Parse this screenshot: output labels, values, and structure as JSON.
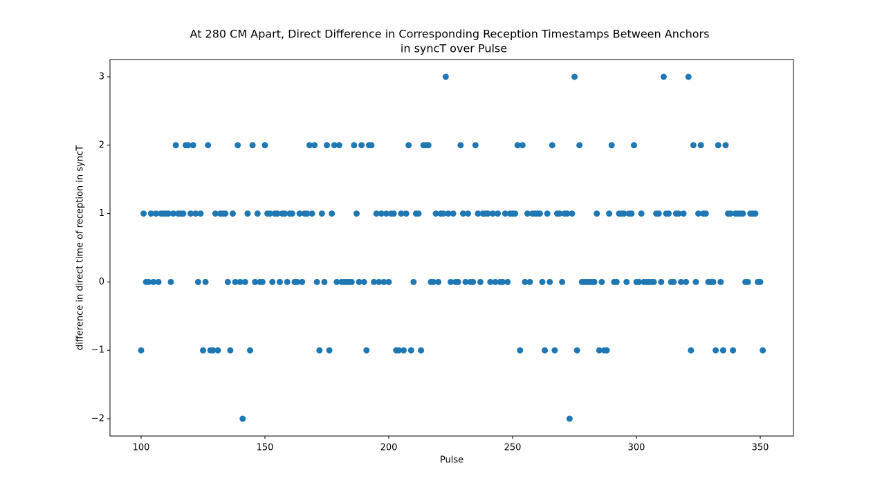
{
  "chart_data": {
    "type": "scatter",
    "title": [
      "At 280 CM Apart, Direct Difference in Corresponding Reception Timestamps Between Anchors",
      "in syncT over Pulse"
    ],
    "x_label": "Pulse",
    "y_label": "difference in direct time of reception in syncT",
    "color": "#1f77b4",
    "x": [
      100,
      101,
      102,
      103,
      104,
      105,
      106,
      107,
      108,
      109,
      110,
      111,
      112,
      113,
      114,
      115,
      116,
      117,
      118,
      119,
      120,
      121,
      122,
      123,
      124,
      125,
      126,
      127,
      128,
      129,
      130,
      131,
      132,
      133,
      134,
      135,
      136,
      137,
      138,
      139,
      140,
      141,
      142,
      143,
      144,
      145,
      146,
      147,
      148,
      149,
      150,
      151,
      152,
      153,
      154,
      155,
      156,
      157,
      158,
      159,
      160,
      161,
      162,
      163,
      164,
      165,
      166,
      167,
      168,
      169,
      170,
      171,
      172,
      173,
      174,
      175,
      176,
      177,
      178,
      179,
      180,
      181,
      182,
      183,
      184,
      185,
      186,
      187,
      188,
      189,
      190,
      191,
      192,
      193,
      194,
      195,
      196,
      197,
      198,
      199,
      200,
      201,
      202,
      203,
      204,
      205,
      206,
      207,
      208,
      209,
      210,
      211,
      212,
      213,
      214,
      215,
      216,
      217,
      218,
      219,
      220,
      221,
      222,
      223,
      224,
      225,
      226,
      227,
      228,
      229,
      230,
      231,
      232,
      233,
      234,
      235,
      236,
      237,
      238,
      239,
      240,
      241,
      242,
      243,
      244,
      245,
      246,
      247,
      248,
      249,
      250,
      251,
      252,
      253,
      254,
      255,
      256,
      257,
      258,
      259,
      260,
      261,
      262,
      263,
      264,
      265,
      266,
      267,
      268,
      269,
      270,
      271,
      272,
      273,
      274,
      275,
      276,
      277,
      278,
      279,
      280,
      281,
      282,
      283,
      284,
      285,
      286,
      287,
      288,
      289,
      290,
      291,
      292,
      293,
      294,
      295,
      296,
      297,
      298,
      299,
      300,
      301,
      302,
      303,
      304,
      305,
      306,
      307,
      308,
      309,
      310,
      311,
      312,
      313,
      314,
      315,
      316,
      317,
      318,
      319,
      320,
      321,
      322,
      323,
      324,
      325,
      326,
      327,
      328,
      329,
      330,
      331,
      332,
      333,
      334,
      335,
      336,
      337,
      338,
      339,
      340,
      341,
      342,
      343,
      344,
      345,
      346,
      347,
      348,
      349,
      350,
      351
    ],
    "values": [
      -1,
      1,
      0,
      0,
      1,
      0,
      1,
      0,
      1,
      1,
      1,
      1,
      0,
      1,
      2,
      1,
      1,
      1,
      2,
      2,
      1,
      2,
      1,
      0,
      1,
      -1,
      0,
      2,
      -1,
      -1,
      1,
      -1,
      1,
      1,
      1,
      0,
      -1,
      1,
      0,
      2,
      0,
      -2,
      0,
      1,
      -1,
      2,
      0,
      1,
      0,
      0,
      2,
      1,
      1,
      0,
      1,
      1,
      0,
      1,
      1,
      0,
      1,
      1,
      0,
      0,
      1,
      0,
      1,
      1,
      2,
      1,
      2,
      0,
      -1,
      1,
      0,
      2,
      -1,
      1,
      2,
      0,
      2,
      0,
      0,
      0,
      0,
      0,
      2,
      1,
      0,
      2,
      0,
      -1,
      2,
      2,
      0,
      1,
      0,
      1,
      0,
      1,
      0,
      1,
      1,
      -1,
      -1,
      1,
      -1,
      1,
      2,
      -1,
      0,
      1,
      1,
      -1,
      2,
      2,
      2,
      0,
      0,
      1,
      0,
      1,
      1,
      3,
      1,
      0,
      1,
      0,
      0,
      2,
      1,
      0,
      1,
      0,
      0,
      2,
      1,
      0,
      1,
      1,
      1,
      0,
      1,
      0,
      1,
      0,
      0,
      1,
      0,
      1,
      1,
      1,
      2,
      -1,
      2,
      0,
      1,
      0,
      1,
      1,
      1,
      1,
      0,
      -1,
      1,
      0,
      2,
      -1,
      1,
      1,
      0,
      1,
      1,
      -2,
      1,
      3,
      -1,
      2,
      0,
      0,
      0,
      0,
      0,
      0,
      1,
      -1,
      0,
      -1,
      -1,
      1,
      2,
      0,
      0,
      1,
      1,
      1,
      0,
      1,
      1,
      2,
      0,
      0,
      1,
      0,
      0,
      0,
      0,
      0,
      1,
      1,
      0,
      3,
      1,
      1,
      0,
      0,
      1,
      1,
      0,
      1,
      0,
      3,
      -1,
      2,
      0,
      1,
      2,
      1,
      1,
      0,
      0,
      0,
      -1,
      2,
      0,
      -1,
      2,
      1,
      1,
      -1,
      1,
      1,
      1,
      1,
      0,
      0,
      1,
      1,
      1,
      0,
      0,
      -1
    ],
    "xlim": [
      87.43,
      363.4
    ],
    "ylim": [
      -2.253,
      3.253
    ],
    "xticks": [
      100,
      150,
      200,
      250,
      300,
      350
    ],
    "yticks": [
      {
        "value": -2,
        "label": "−2"
      },
      {
        "value": -1,
        "label": "−1"
      },
      0,
      1,
      2,
      3
    ]
  }
}
